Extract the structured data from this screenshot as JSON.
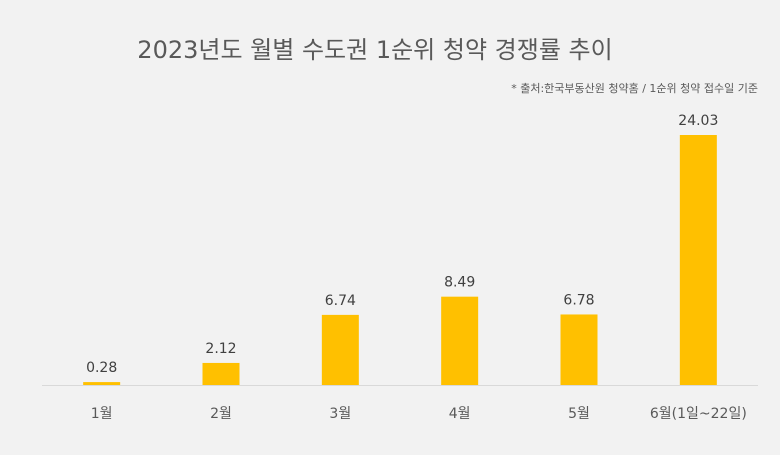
{
  "chart_data": {
    "type": "bar",
    "title": "2023년도 월별 수도권 1순위 청약 경쟁률 추이",
    "source_note": "* 출처:한국부동산원 청약홈 / 1순위 청약 접수일 기준",
    "categories": [
      "1월",
      "2월",
      "3월",
      "4월",
      "5월",
      "6월(1일~22일)"
    ],
    "values": [
      0.28,
      2.12,
      6.74,
      8.49,
      6.78,
      24.03
    ],
    "value_labels": [
      "0.28",
      "2.12",
      "6.74",
      "8.49",
      "6.78",
      "24.03"
    ],
    "xlabel": "",
    "ylabel": "",
    "ylim": [
      0,
      24.03
    ],
    "grid": false,
    "legend": "none",
    "bar_color": "#ffc000"
  }
}
